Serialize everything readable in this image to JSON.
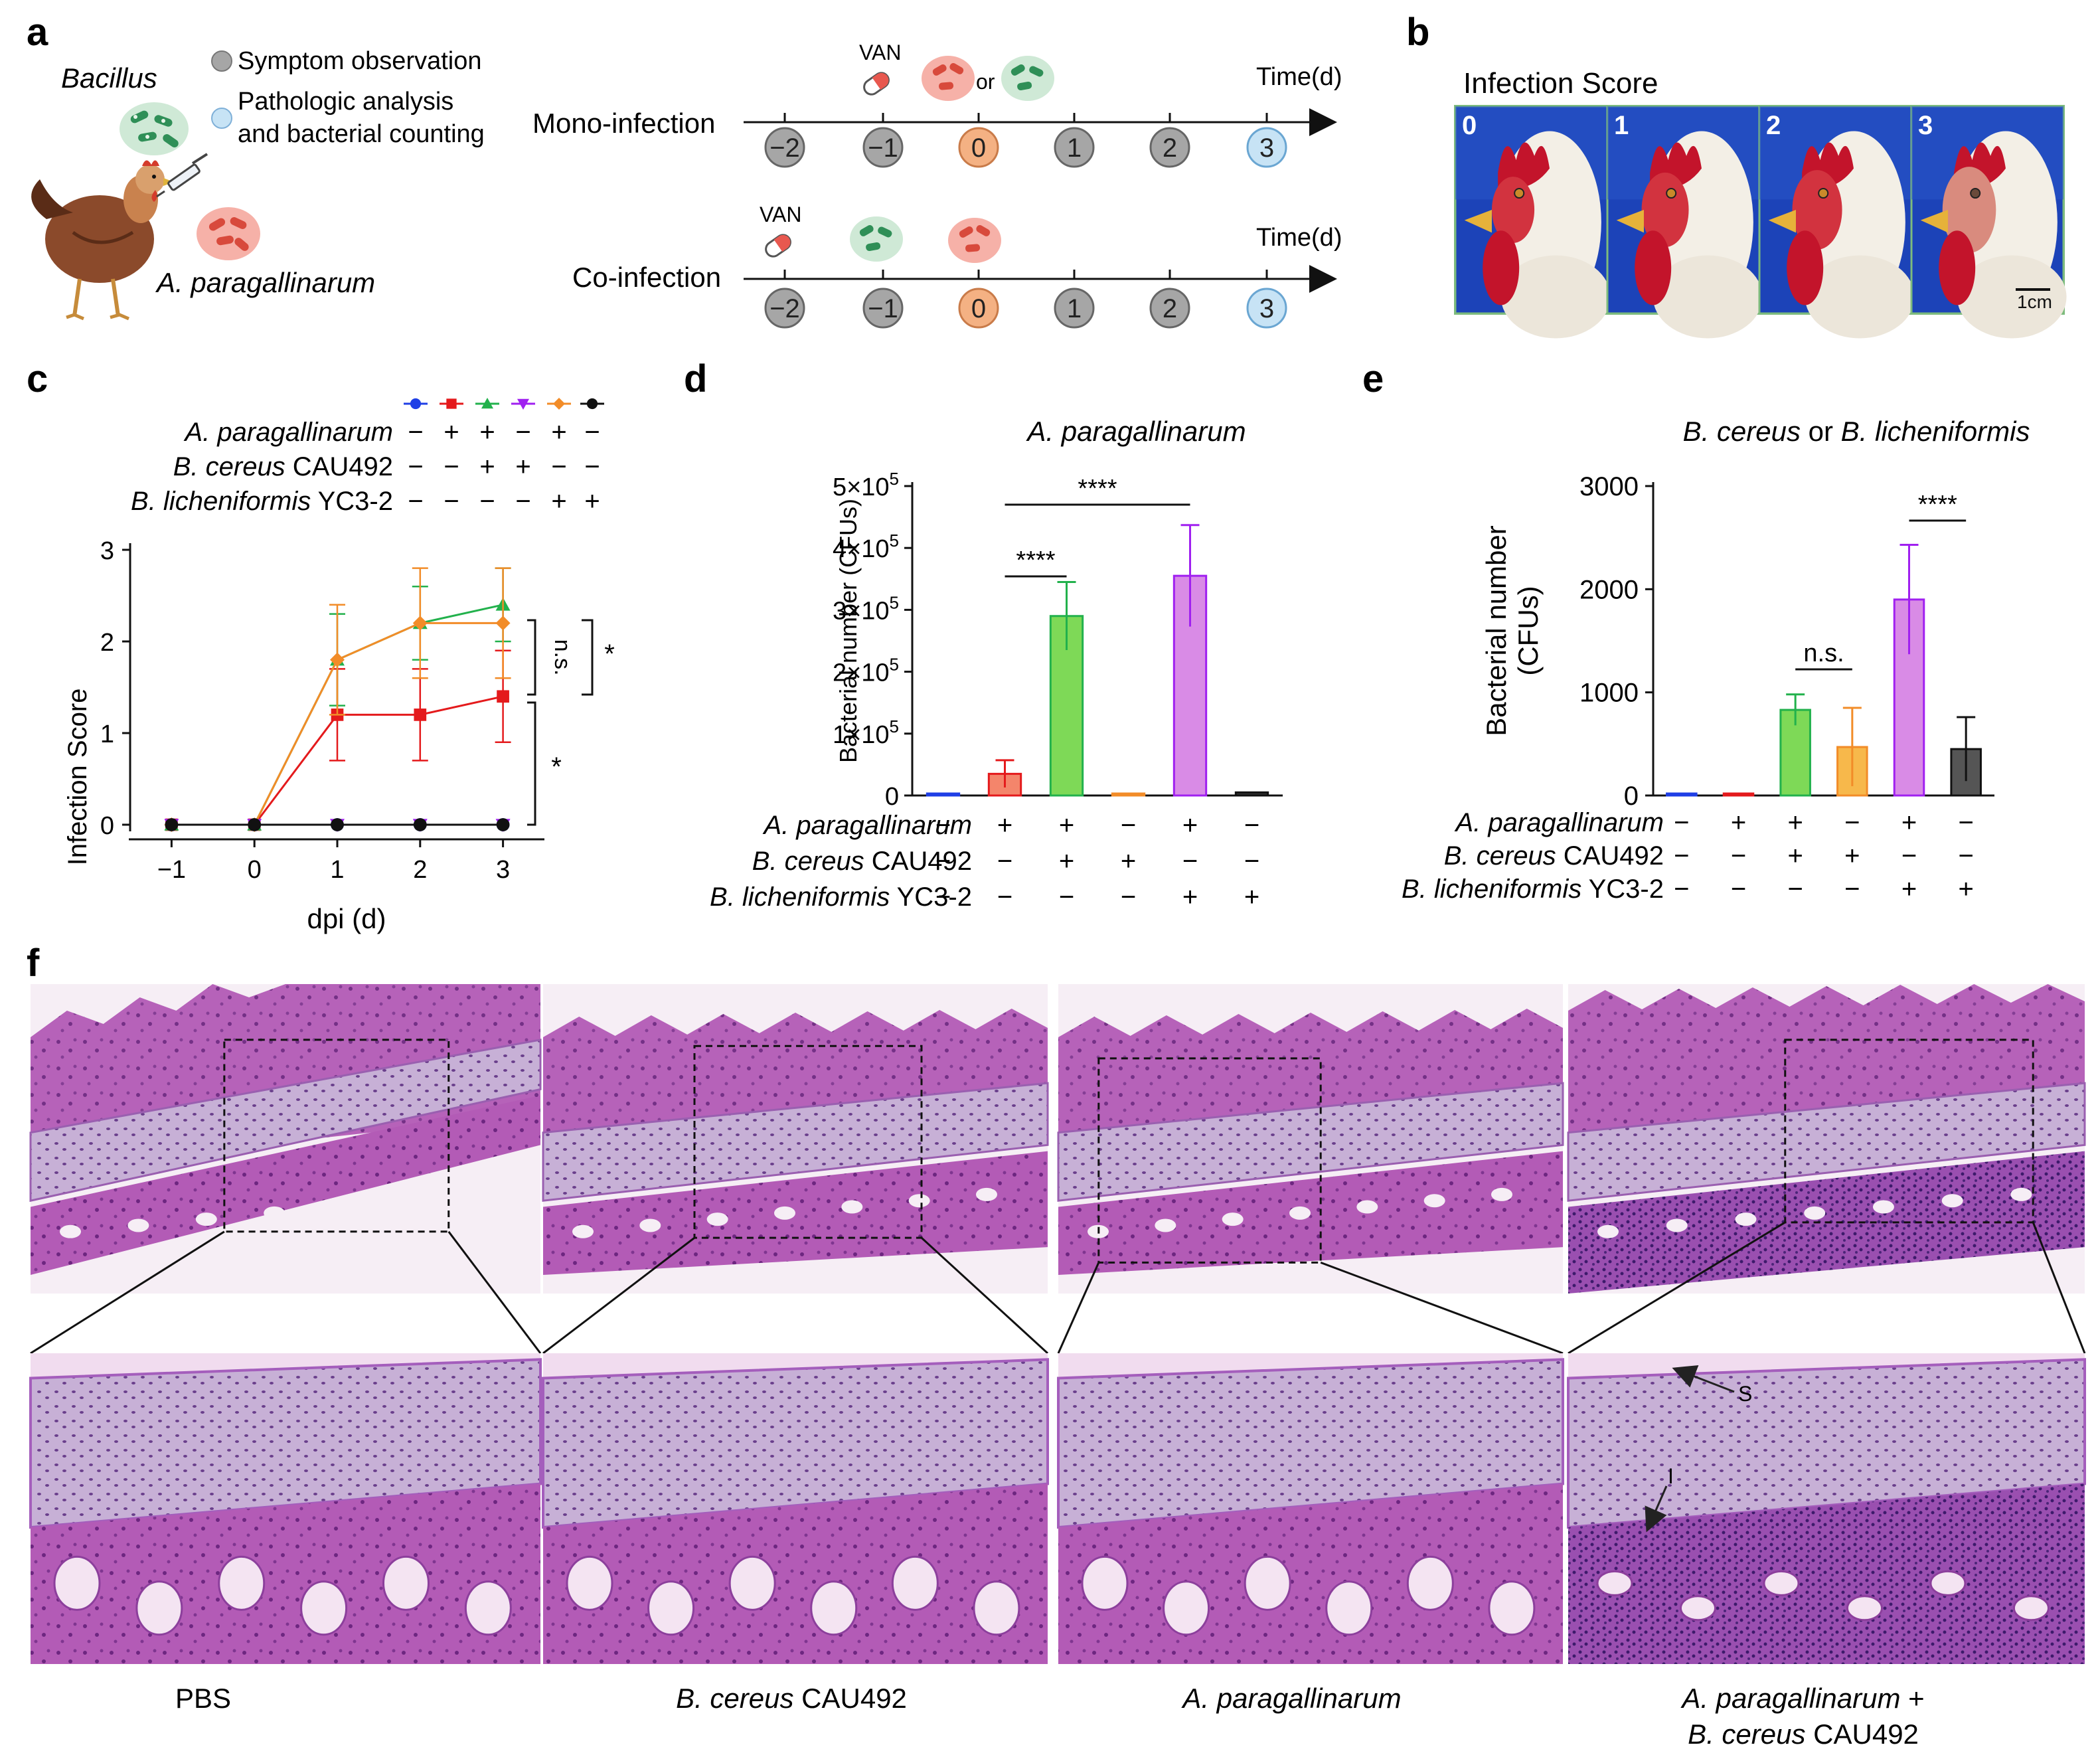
{
  "panel_labels": {
    "a": "a",
    "b": "b",
    "c": "c",
    "d": "d",
    "e": "e",
    "f": "f"
  },
  "panel_a": {
    "bacillus_label": "Bacillus",
    "ap_label": "A. paragallinarum",
    "legend": {
      "symptom": "Symptom observation",
      "pathologic_line1": "Pathologic analysis",
      "pathologic_line2": "and bacterial counting"
    },
    "mono": {
      "label": "Mono-infection",
      "van": "VAN",
      "or": "or",
      "time": "Time(d)",
      "days": [
        "−2",
        "−1",
        "0",
        "1",
        "2",
        "3"
      ]
    },
    "co": {
      "label": "Co-infection",
      "van": "VAN",
      "time": "Time(d)",
      "days": [
        "−2",
        "−1",
        "0",
        "1",
        "2",
        "3"
      ]
    },
    "colors": {
      "gray": "#a6a6a6",
      "orange": "#f4b183",
      "blue": "#c7e3f5",
      "bacillus": "#3aa66b",
      "ap": "#e8584f"
    }
  },
  "panel_b": {
    "title": "Infection Score",
    "scores": [
      "0",
      "1",
      "2",
      "3"
    ],
    "scale_bar": "1cm",
    "border_color": "#7dbb7d",
    "bg_color": "#1a3fb0"
  },
  "panel_c": {
    "row_labels": [
      {
        "italic": "A. paragallinarum",
        "plain": ""
      },
      {
        "italic": "B. cereus",
        "plain": " CAU492"
      },
      {
        "italic": "B. licheniformis",
        "plain": " YC3-2"
      }
    ],
    "signs": [
      [
        "−",
        "+",
        "+",
        "−",
        "+",
        "−"
      ],
      [
        "−",
        "−",
        "+",
        "+",
        "−",
        "−"
      ],
      [
        "−",
        "−",
        "−",
        "−",
        "+",
        "+"
      ]
    ],
    "ylabel": "Infection Score",
    "xlabel": "dpi (d)",
    "sig": {
      "ns": "n.s.",
      "star1": "*",
      "star2": "*"
    },
    "chart_data": {
      "type": "line",
      "x": [
        -1,
        0,
        1,
        2,
        3
      ],
      "xlim": [
        -1.5,
        3.5
      ],
      "ylim": [
        0,
        3
      ],
      "yticks": [
        0,
        1,
        2,
        3
      ],
      "series": [
        {
          "name": "PBS",
          "color": "#1f3fe6",
          "marker": "circle",
          "values": [
            0,
            0,
            0,
            0,
            0
          ],
          "err": [
            0,
            0,
            0,
            0,
            0
          ]
        },
        {
          "name": "A. paragallinarum",
          "color": "#e41a1c",
          "marker": "square",
          "values": [
            0,
            0,
            1.2,
            1.2,
            1.4
          ],
          "err": [
            0,
            0,
            0.5,
            0.5,
            0.5
          ]
        },
        {
          "name": "A. paragallinarum + B. cereus CAU492",
          "color": "#22b14c",
          "marker": "triangle",
          "values": [
            0,
            0,
            1.8,
            2.2,
            2.4
          ],
          "err": [
            0,
            0,
            0.5,
            0.4,
            0.4
          ]
        },
        {
          "name": "B. cereus CAU492",
          "color": "#a020f0",
          "marker": "triangle-down",
          "values": [
            0,
            0,
            0,
            0,
            0
          ],
          "err": [
            0,
            0,
            0,
            0,
            0
          ]
        },
        {
          "name": "A. paragallinarum + B. licheniformis YC3-2",
          "color": "#f28c28",
          "marker": "diamond",
          "values": [
            0,
            0,
            1.8,
            2.2,
            2.2
          ],
          "err": [
            0,
            0,
            0.6,
            0.6,
            0.6
          ]
        },
        {
          "name": "B. licheniformis YC3-2",
          "color": "#111111",
          "marker": "circle",
          "values": [
            0,
            0,
            0,
            0,
            0
          ],
          "err": [
            0,
            0,
            0,
            0,
            0
          ]
        }
      ]
    }
  },
  "panel_d": {
    "title": "A. paragallinarum",
    "ylabel": "Bacterial number (CFUs)",
    "yticks": [
      {
        "mant": "0",
        "exp": ""
      },
      {
        "mant": "1×10",
        "exp": "5"
      },
      {
        "mant": "2×10",
        "exp": "5"
      },
      {
        "mant": "3×10",
        "exp": "5"
      },
      {
        "mant": "4×10",
        "exp": "5"
      },
      {
        "mant": "5×10",
        "exp": "5"
      }
    ],
    "row_labels": [
      {
        "italic": "A. paragallinarum",
        "plain": ""
      },
      {
        "italic": "B. cereus",
        "plain": " CAU492"
      },
      {
        "italic": "B. licheniformis",
        "plain": " YC3-2"
      }
    ],
    "signs": [
      [
        "−",
        "+",
        "+",
        "−",
        "+",
        "−"
      ],
      [
        "−",
        "−",
        "+",
        "+",
        "−",
        "−"
      ],
      [
        "−",
        "−",
        "−",
        "−",
        "+",
        "+"
      ]
    ],
    "sig": {
      "s1": "****",
      "s2": "****"
    },
    "chart_data": {
      "type": "bar",
      "ylim": [
        0,
        500000
      ],
      "values": [
        1000,
        35000,
        290000,
        3000,
        355000,
        5000
      ],
      "err": [
        0,
        22000,
        55000,
        0,
        82000,
        0
      ],
      "fill": [
        "#1f3fe6",
        "#f4856b",
        "#7ed957",
        "#f7b84b",
        "#d98be6",
        "#333333"
      ],
      "stroke": [
        "#1f3fe6",
        "#e41a1c",
        "#22b14c",
        "#f28c28",
        "#a020f0",
        "#111111"
      ]
    }
  },
  "panel_e": {
    "title_italic1": "B. cereus",
    "title_or": " or ",
    "title_italic2": "B. licheniformis",
    "ylabel1": "Bacterial number",
    "ylabel2": "(CFUs)",
    "yticks": [
      "0",
      "1000",
      "2000",
      "3000"
    ],
    "row_labels": [
      {
        "italic": "A. paragallinarum",
        "plain": ""
      },
      {
        "italic": "B. cereus",
        "plain": " CAU492"
      },
      {
        "italic": "B. licheniformis",
        "plain": " YC3-2"
      }
    ],
    "signs": [
      [
        "−",
        "+",
        "+",
        "−",
        "+",
        "−"
      ],
      [
        "−",
        "−",
        "+",
        "+",
        "−",
        "−"
      ],
      [
        "−",
        "−",
        "−",
        "−",
        "+",
        "+"
      ]
    ],
    "sig": {
      "ns": "n.s.",
      "s1": "****"
    },
    "chart_data": {
      "type": "bar",
      "ylim": [
        0,
        3000
      ],
      "values": [
        10,
        10,
        830,
        470,
        1900,
        450
      ],
      "err": [
        0,
        0,
        150,
        380,
        530,
        310
      ],
      "fill": [
        "#1f3fe6",
        "#f4856b",
        "#7ed957",
        "#f7b84b",
        "#d98be6",
        "#555555"
      ],
      "stroke": [
        "#1f3fe6",
        "#e41a1c",
        "#22b14c",
        "#f28c28",
        "#a020f0",
        "#111111"
      ]
    }
  },
  "panel_f": {
    "captions": [
      {
        "italic": "",
        "plain": "PBS",
        "italic2": "",
        "plain2": ""
      },
      {
        "italic": "B. cereus",
        "plain": " CAU492",
        "italic2": "",
        "plain2": ""
      },
      {
        "italic": "A. paragallinarum",
        "plain": "",
        "italic2": "",
        "plain2": ""
      },
      {
        "italic": "A. paragallinarum",
        "plain": " +",
        "italic2": "B. cereus",
        "plain2": " CAU492"
      }
    ],
    "annot_s": "S",
    "annot_i": "I",
    "tissue_colors": {
      "bg": "#f4e6f2",
      "cartilage": "#c9b3d8",
      "mucosa": "#b257b5",
      "dark": "#7d2f8a",
      "light": "#e8c9e6"
    }
  }
}
